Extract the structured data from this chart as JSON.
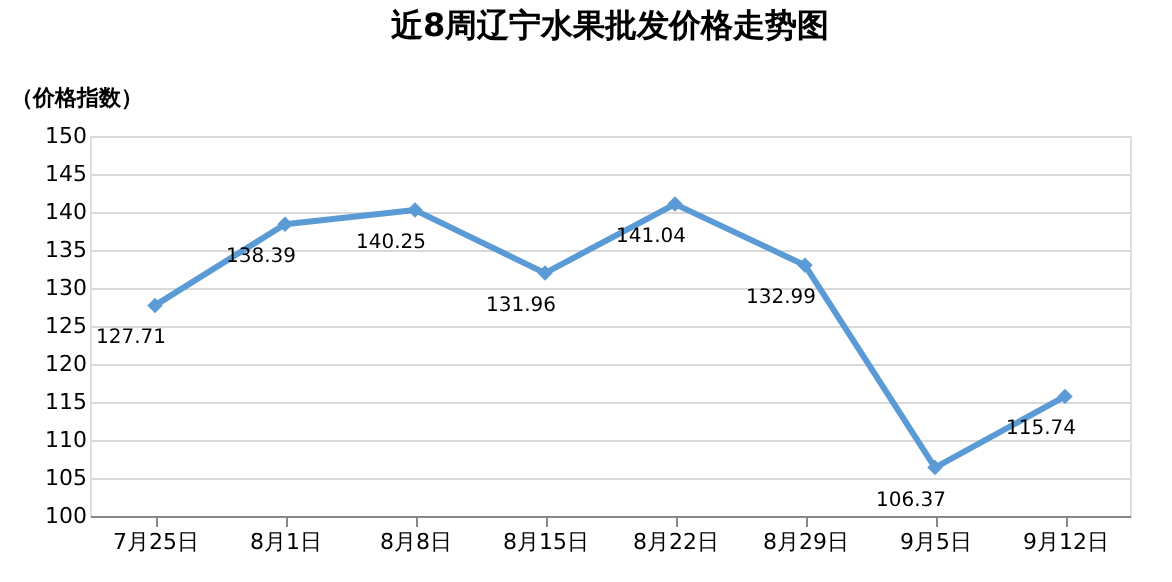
{
  "chart_data": {
    "type": "line",
    "title": "近8周辽宁水果批发价格走势图",
    "ylabel": "（价格指数）",
    "categories": [
      "7月25日",
      "8月1日",
      "8月8日",
      "8月15日",
      "8月22日",
      "8月29日",
      "9月5日",
      "9月12日"
    ],
    "series": [
      {
        "color": "#5b9bd5",
        "values": [
          127.71,
          138.39,
          140.25,
          131.96,
          141.04,
          132.99,
          106.37,
          115.74
        ]
      }
    ],
    "ylim": [
      100,
      150
    ],
    "yticks": [
      100,
      105,
      110,
      115,
      120,
      125,
      130,
      135,
      140,
      145,
      150
    ],
    "grid": "y",
    "legend": false,
    "marker": "diamond",
    "line_style": "solid",
    "data_labels": true
  }
}
